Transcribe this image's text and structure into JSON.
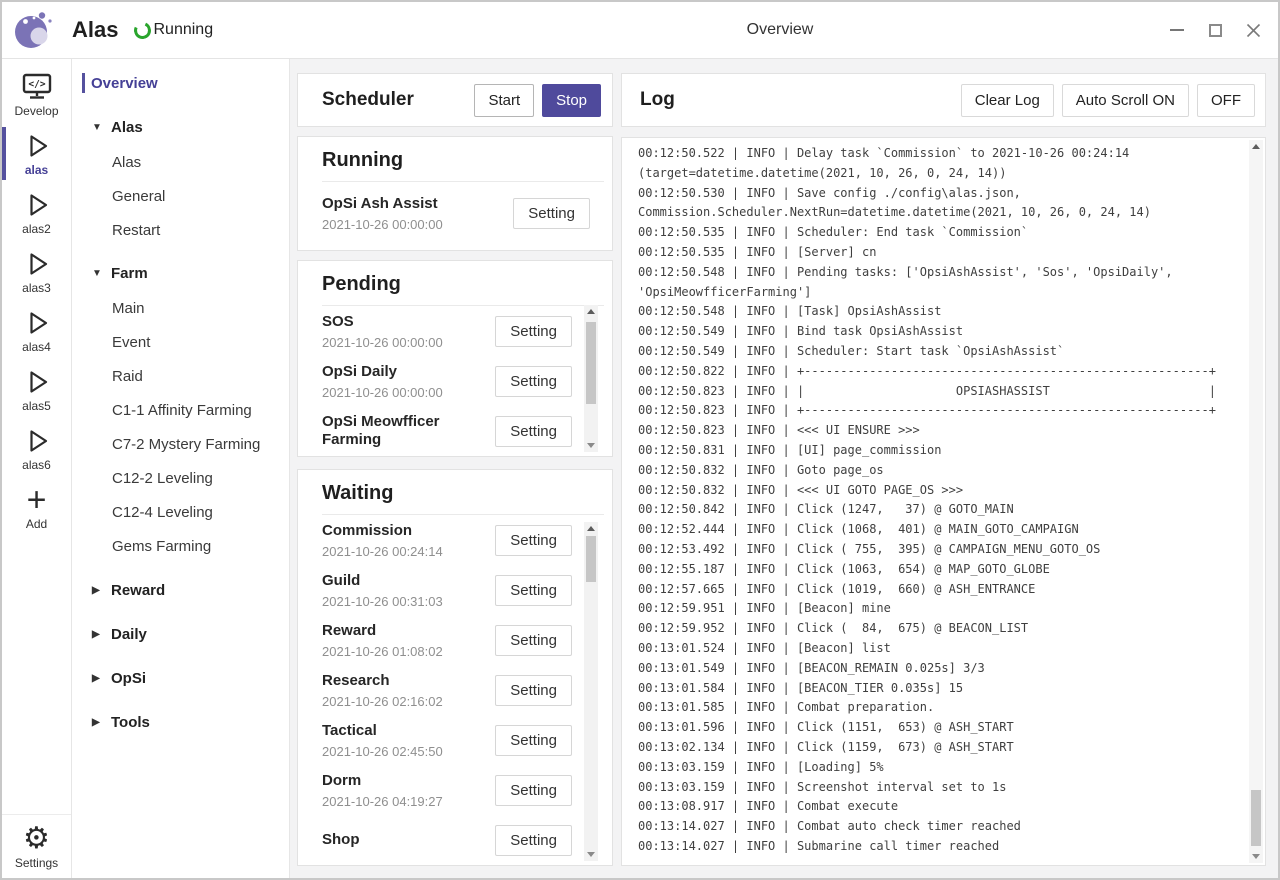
{
  "header": {
    "app_name": "Alas",
    "status_text": "Running",
    "page_title": "Overview"
  },
  "window_controls": {
    "minimize": "minimize",
    "maximize": "maximize",
    "close": "close"
  },
  "sidebar": {
    "items": [
      {
        "id": "develop",
        "label": "Develop",
        "icon": "code-monitor",
        "selected": false
      },
      {
        "id": "alas",
        "label": "alas",
        "icon": "play",
        "selected": true
      },
      {
        "id": "alas2",
        "label": "alas2",
        "icon": "play",
        "selected": false
      },
      {
        "id": "alas3",
        "label": "alas3",
        "icon": "play",
        "selected": false
      },
      {
        "id": "alas4",
        "label": "alas4",
        "icon": "play",
        "selected": false
      },
      {
        "id": "alas5",
        "label": "alas5",
        "icon": "play",
        "selected": false
      },
      {
        "id": "alas6",
        "label": "alas6",
        "icon": "play",
        "selected": false
      },
      {
        "id": "add",
        "label": "Add",
        "icon": "plus",
        "selected": false
      }
    ],
    "settings": {
      "id": "settings",
      "label": "Settings",
      "icon": "gear"
    }
  },
  "nav": {
    "items": [
      {
        "type": "overview",
        "label": "Overview",
        "selected": true
      },
      {
        "type": "group",
        "label": "Alas",
        "expanded": true
      },
      {
        "type": "child",
        "label": "Alas"
      },
      {
        "type": "child",
        "label": "General"
      },
      {
        "type": "child",
        "label": "Restart"
      },
      {
        "type": "group",
        "label": "Farm",
        "expanded": true
      },
      {
        "type": "child",
        "label": "Main"
      },
      {
        "type": "child",
        "label": "Event"
      },
      {
        "type": "child",
        "label": "Raid"
      },
      {
        "type": "child",
        "label": "C1-1 Affinity Farming"
      },
      {
        "type": "child",
        "label": "C7-2 Mystery Farming"
      },
      {
        "type": "child",
        "label": "C12-2 Leveling"
      },
      {
        "type": "child",
        "label": "C12-4 Leveling"
      },
      {
        "type": "child",
        "label": "Gems Farming"
      },
      {
        "type": "group",
        "label": "Reward",
        "expanded": false
      },
      {
        "type": "group",
        "label": "Daily",
        "expanded": false
      },
      {
        "type": "group",
        "label": "OpSi",
        "expanded": false
      },
      {
        "type": "group",
        "label": "Tools",
        "expanded": false
      }
    ]
  },
  "labels": {
    "setting": "Setting"
  },
  "scheduler": {
    "title": "Scheduler",
    "start_label": "Start",
    "stop_label": "Stop",
    "stop_active": true
  },
  "running": {
    "title": "Running",
    "tasks": [
      {
        "name": "OpSi Ash Assist",
        "time": "2021-10-26 00:00:00"
      }
    ]
  },
  "pending": {
    "title": "Pending",
    "tasks": [
      {
        "name": "SOS",
        "time": "2021-10-26 00:00:00"
      },
      {
        "name": "OpSi Daily",
        "time": "2021-10-26 00:00:00"
      },
      {
        "name": "OpSi Meowfficer Farming",
        "time": ""
      }
    ]
  },
  "waiting": {
    "title": "Waiting",
    "tasks": [
      {
        "name": "Commission",
        "time": "2021-10-26 00:24:14"
      },
      {
        "name": "Guild",
        "time": "2021-10-26 00:31:03"
      },
      {
        "name": "Reward",
        "time": "2021-10-26 01:08:02"
      },
      {
        "name": "Research",
        "time": "2021-10-26 02:16:02"
      },
      {
        "name": "Tactical",
        "time": "2021-10-26 02:45:50"
      },
      {
        "name": "Dorm",
        "time": "2021-10-26 04:19:27"
      },
      {
        "name": "Shop",
        "time": ""
      }
    ]
  },
  "log": {
    "title": "Log",
    "clear_label": "Clear Log",
    "autoscroll_on_label": "Auto Scroll ON",
    "off_label": "OFF",
    "lines": [
      "00:12:50.522 | INFO | Delay task `Commission` to 2021-10-26 00:24:14 (target=datetime.datetime(2021, 10, 26, 0, 24, 14))",
      "00:12:50.530 | INFO | Save config ./config\\alas.json, Commission.Scheduler.NextRun=datetime.datetime(2021, 10, 26, 0, 24, 14)",
      "00:12:50.535 | INFO | Scheduler: End task `Commission`",
      "00:12:50.535 | INFO | [Server] cn",
      "00:12:50.548 | INFO | Pending tasks: ['OpsiAshAssist', 'Sos', 'OpsiDaily', 'OpsiMeowfficerFarming']",
      "00:12:50.548 | INFO | [Task] OpsiAshAssist",
      "00:12:50.549 | INFO | Bind task OpsiAshAssist",
      "00:12:50.549 | INFO | Scheduler: Start task `OpsiAshAssist`",
      "00:12:50.822 | INFO | +--------------------------------------------------------+",
      "00:12:50.823 | INFO | |                     OPSIASHASSIST                      |",
      "00:12:50.823 | INFO | +--------------------------------------------------------+",
      "00:12:50.823 | INFO | <<< UI ENSURE >>>",
      "00:12:50.831 | INFO | [UI] page_commission",
      "00:12:50.832 | INFO | Goto page_os",
      "00:12:50.832 | INFO | <<< UI GOTO PAGE_OS >>>",
      "00:12:50.842 | INFO | Click (1247,   37) @ GOTO_MAIN",
      "00:12:52.444 | INFO | Click (1068,  401) @ MAIN_GOTO_CAMPAIGN",
      "00:12:53.492 | INFO | Click ( 755,  395) @ CAMPAIGN_MENU_GOTO_OS",
      "00:12:55.187 | INFO | Click (1063,  654) @ MAP_GOTO_GLOBE",
      "00:12:57.665 | INFO | Click (1019,  660) @ ASH_ENTRANCE",
      "00:12:59.951 | INFO | [Beacon] mine",
      "00:12:59.952 | INFO | Click (  84,  675) @ BEACON_LIST",
      "00:13:01.524 | INFO | [Beacon] list",
      "00:13:01.549 | INFO | [BEACON_REMAIN 0.025s] 3/3",
      "00:13:01.584 | INFO | [BEACON_TIER 0.035s] 15",
      "00:13:01.585 | INFO | Combat preparation.",
      "00:13:01.596 | INFO | Click (1151,  653) @ ASH_START",
      "00:13:02.134 | INFO | Click (1159,  673) @ ASH_START",
      "00:13:03.159 | INFO | [Loading] 5%",
      "00:13:03.159 | INFO | Screenshot interval set to 1s",
      "00:13:08.917 | INFO | Combat execute",
      "00:13:14.027 | INFO | Combat auto check timer reached",
      "00:13:14.027 | INFO | Submarine call timer reached"
    ]
  },
  "colors": {
    "accent_purple": "#4f4a9c",
    "accent_text": "#454096",
    "running_green": "#2aa52d",
    "logo_purple": "#7b73b6",
    "logo_lavender": "#d9d6ea"
  }
}
